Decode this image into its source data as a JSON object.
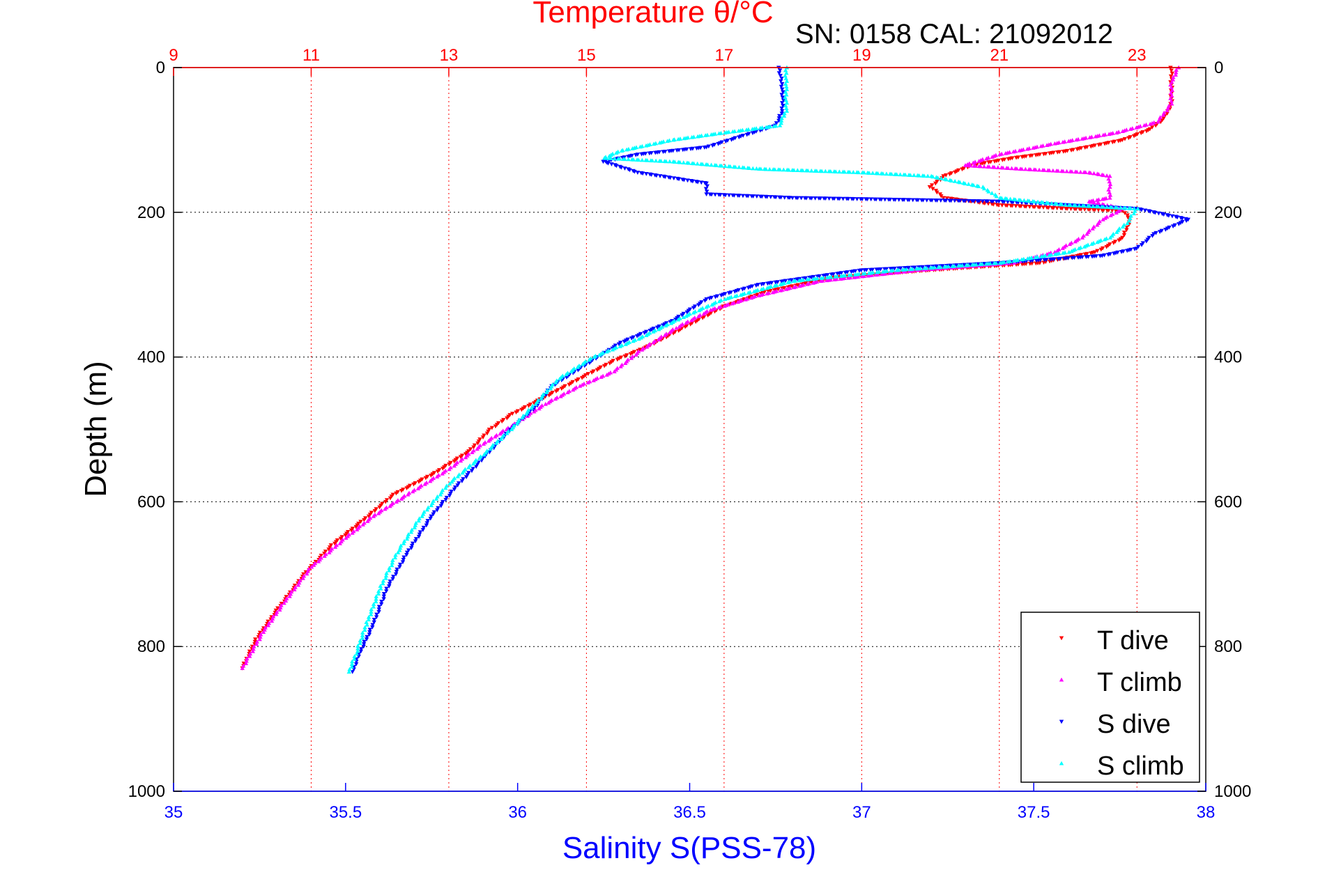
{
  "chart_data": {
    "type": "scatter",
    "title": "Temperature θ/°C",
    "subtitle": "SN: 0158  CAL: 21092012",
    "xlabel": "Salinity S(PSS-78)",
    "ylabel": "Depth (m)",
    "x_top_label": "Temperature θ/°C",
    "x_bottom_lim": [
      35,
      38
    ],
    "x_bottom_ticks": [
      "35",
      "35.5",
      "36",
      "36.5",
      "37",
      "37.5",
      "38"
    ],
    "x_top_lim": [
      9,
      24
    ],
    "x_top_ticks": [
      "9",
      "11",
      "13",
      "15",
      "17",
      "19",
      "21",
      "23"
    ],
    "ylim": [
      0,
      1000
    ],
    "y_reversed": true,
    "y_ticks": [
      "0",
      "200",
      "400",
      "600",
      "800",
      "1000"
    ],
    "grid": true,
    "legend_position": "bottom-right",
    "series": [
      {
        "name": "T dive",
        "axis": "temperature",
        "color": "#ff0000",
        "marker": "triangle-down",
        "points": [
          [
            23.5,
            0
          ],
          [
            23.5,
            20
          ],
          [
            23.5,
            50
          ],
          [
            23.4,
            70
          ],
          [
            23.2,
            85
          ],
          [
            22.8,
            100
          ],
          [
            22.0,
            115
          ],
          [
            21.2,
            125
          ],
          [
            20.6,
            135
          ],
          [
            20.2,
            150
          ],
          [
            20.0,
            165
          ],
          [
            20.2,
            180
          ],
          [
            21.0,
            190
          ],
          [
            22.0,
            195
          ],
          [
            22.8,
            198
          ],
          [
            22.9,
            210
          ],
          [
            22.8,
            235
          ],
          [
            22.4,
            255
          ],
          [
            21.6,
            270
          ],
          [
            20.0,
            280
          ],
          [
            18.6,
            290
          ],
          [
            17.6,
            310
          ],
          [
            17.0,
            330
          ],
          [
            16.4,
            360
          ],
          [
            15.9,
            385
          ],
          [
            15.4,
            405
          ],
          [
            15.0,
            425
          ],
          [
            14.7,
            440
          ],
          [
            14.3,
            460
          ],
          [
            13.9,
            480
          ],
          [
            13.6,
            500
          ],
          [
            13.3,
            530
          ],
          [
            12.8,
            560
          ],
          [
            12.2,
            590
          ],
          [
            11.7,
            630
          ],
          [
            11.3,
            660
          ],
          [
            10.9,
            700
          ],
          [
            10.5,
            750
          ],
          [
            10.2,
            790
          ],
          [
            10.0,
            830
          ]
        ]
      },
      {
        "name": "T climb",
        "axis": "temperature",
        "color": "#ff00ff",
        "marker": "triangle-up",
        "points": [
          [
            23.6,
            0
          ],
          [
            23.5,
            20
          ],
          [
            23.5,
            50
          ],
          [
            23.3,
            75
          ],
          [
            22.7,
            90
          ],
          [
            21.8,
            105
          ],
          [
            21.0,
            120
          ],
          [
            20.5,
            135
          ],
          [
            21.3,
            140
          ],
          [
            22.3,
            145
          ],
          [
            22.6,
            150
          ],
          [
            22.6,
            165
          ],
          [
            22.6,
            180
          ],
          [
            22.3,
            185
          ],
          [
            22.8,
            195
          ],
          [
            22.5,
            210
          ],
          [
            22.2,
            235
          ],
          [
            21.8,
            255
          ],
          [
            21.2,
            270
          ],
          [
            19.8,
            280
          ],
          [
            18.4,
            295
          ],
          [
            17.5,
            315
          ],
          [
            16.8,
            335
          ],
          [
            16.3,
            360
          ],
          [
            15.8,
            390
          ],
          [
            15.4,
            420
          ],
          [
            14.9,
            440
          ],
          [
            14.4,
            465
          ],
          [
            14.0,
            490
          ],
          [
            13.5,
            520
          ],
          [
            13.0,
            555
          ],
          [
            12.4,
            590
          ],
          [
            11.9,
            620
          ],
          [
            11.5,
            650
          ],
          [
            11.0,
            690
          ],
          [
            10.6,
            740
          ],
          [
            10.3,
            780
          ],
          [
            10.0,
            830
          ]
        ]
      },
      {
        "name": "S dive",
        "axis": "salinity",
        "color": "#0000ff",
        "marker": "triangle-down",
        "points": [
          [
            36.76,
            0
          ],
          [
            36.77,
            30
          ],
          [
            36.77,
            60
          ],
          [
            36.75,
            80
          ],
          [
            36.65,
            95
          ],
          [
            36.55,
            110
          ],
          [
            36.35,
            120
          ],
          [
            36.25,
            130
          ],
          [
            36.35,
            145
          ],
          [
            36.55,
            160
          ],
          [
            36.55,
            175
          ],
          [
            36.8,
            180
          ],
          [
            37.4,
            185
          ],
          [
            37.8,
            195
          ],
          [
            37.95,
            210
          ],
          [
            37.85,
            230
          ],
          [
            37.8,
            250
          ],
          [
            37.7,
            260
          ],
          [
            37.4,
            270
          ],
          [
            37.0,
            280
          ],
          [
            36.7,
            300
          ],
          [
            36.55,
            320
          ],
          [
            36.45,
            350
          ],
          [
            36.3,
            380
          ],
          [
            36.2,
            410
          ],
          [
            36.1,
            440
          ],
          [
            36.05,
            470
          ],
          [
            35.98,
            500
          ],
          [
            35.9,
            540
          ],
          [
            35.82,
            580
          ],
          [
            35.75,
            620
          ],
          [
            35.68,
            670
          ],
          [
            35.62,
            720
          ],
          [
            35.58,
            770
          ],
          [
            35.54,
            810
          ],
          [
            35.52,
            835
          ]
        ]
      },
      {
        "name": "S climb",
        "axis": "salinity",
        "color": "#00ffff",
        "marker": "triangle-up",
        "points": [
          [
            36.78,
            0
          ],
          [
            36.78,
            30
          ],
          [
            36.78,
            60
          ],
          [
            36.76,
            80
          ],
          [
            36.6,
            90
          ],
          [
            36.45,
            100
          ],
          [
            36.3,
            115
          ],
          [
            36.25,
            125
          ],
          [
            36.45,
            130
          ],
          [
            36.7,
            140
          ],
          [
            37.0,
            145
          ],
          [
            37.2,
            150
          ],
          [
            37.35,
            165
          ],
          [
            37.4,
            180
          ],
          [
            37.6,
            190
          ],
          [
            37.8,
            195
          ],
          [
            37.77,
            215
          ],
          [
            37.72,
            235
          ],
          [
            37.6,
            255
          ],
          [
            37.4,
            270
          ],
          [
            37.1,
            280
          ],
          [
            36.8,
            295
          ],
          [
            36.6,
            320
          ],
          [
            36.48,
            345
          ],
          [
            36.35,
            375
          ],
          [
            36.22,
            400
          ],
          [
            36.12,
            430
          ],
          [
            36.05,
            465
          ],
          [
            35.98,
            500
          ],
          [
            35.9,
            535
          ],
          [
            35.8,
            575
          ],
          [
            35.72,
            620
          ],
          [
            35.65,
            670
          ],
          [
            35.6,
            720
          ],
          [
            35.56,
            770
          ],
          [
            35.53,
            810
          ],
          [
            35.51,
            835
          ]
        ]
      }
    ]
  }
}
